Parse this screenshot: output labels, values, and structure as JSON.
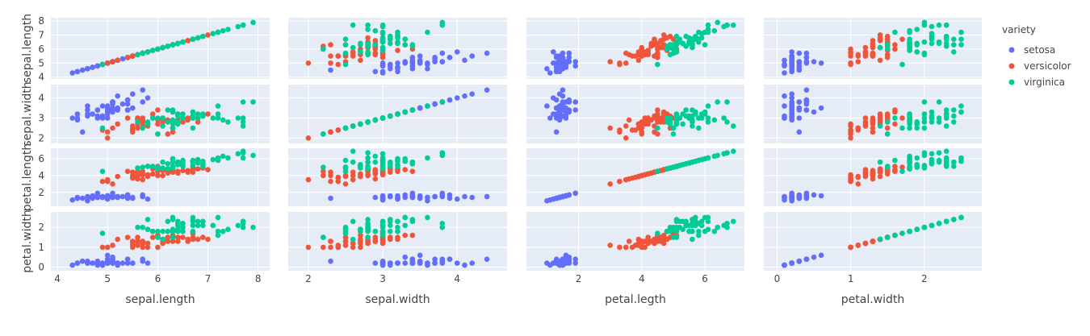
{
  "chart_data": {
    "type": "scatter",
    "subtype": "scatter-matrix",
    "dimensions": [
      "sepal.length",
      "sepal.width",
      "petal.legth",
      "petal.width"
    ],
    "y_dimension_labels": [
      "sepal.length",
      "sepal.width",
      "petal.length",
      "petal.width"
    ],
    "ranges": {
      "sepal.length": [
        3.87,
        8.23
      ],
      "sepal.width": [
        1.73,
        4.67
      ],
      "petal.legth": [
        0.35,
        7.25
      ],
      "petal.width": [
        -0.18,
        2.78
      ]
    },
    "ticks": {
      "sepal.length": [
        4,
        5,
        6,
        7,
        8
      ],
      "sepal.width": [
        2,
        3,
        4
      ],
      "petal.legth": [
        2,
        4,
        6
      ],
      "petal.width": [
        0,
        1,
        2
      ]
    },
    "legend": {
      "title": "variety",
      "position": "top-right",
      "entries": [
        {
          "name": "setosa",
          "color": "#636efa"
        },
        {
          "name": "versicolor",
          "color": "#EF553B"
        },
        {
          "name": "virginica",
          "color": "#00cc96"
        }
      ]
    },
    "grid": true,
    "series": [
      {
        "name": "setosa",
        "color": "#636efa",
        "points": [
          [
            5.1,
            3.5,
            1.4,
            0.2
          ],
          [
            4.9,
            3.0,
            1.4,
            0.2
          ],
          [
            4.7,
            3.2,
            1.3,
            0.2
          ],
          [
            4.6,
            3.1,
            1.5,
            0.2
          ],
          [
            5.0,
            3.6,
            1.4,
            0.2
          ],
          [
            5.4,
            3.9,
            1.7,
            0.4
          ],
          [
            4.6,
            3.4,
            1.4,
            0.3
          ],
          [
            5.0,
            3.4,
            1.5,
            0.2
          ],
          [
            4.4,
            2.9,
            1.4,
            0.2
          ],
          [
            4.9,
            3.1,
            1.5,
            0.1
          ],
          [
            5.4,
            3.7,
            1.5,
            0.2
          ],
          [
            4.8,
            3.4,
            1.6,
            0.2
          ],
          [
            4.8,
            3.0,
            1.4,
            0.1
          ],
          [
            4.3,
            3.0,
            1.1,
            0.1
          ],
          [
            5.8,
            4.0,
            1.2,
            0.2
          ],
          [
            5.7,
            4.4,
            1.5,
            0.4
          ],
          [
            5.4,
            3.9,
            1.3,
            0.4
          ],
          [
            5.1,
            3.5,
            1.4,
            0.3
          ],
          [
            5.7,
            3.8,
            1.7,
            0.3
          ],
          [
            5.1,
            3.8,
            1.5,
            0.3
          ],
          [
            5.4,
            3.4,
            1.7,
            0.2
          ],
          [
            5.1,
            3.7,
            1.5,
            0.4
          ],
          [
            4.6,
            3.6,
            1.0,
            0.2
          ],
          [
            5.1,
            3.3,
            1.7,
            0.5
          ],
          [
            4.8,
            3.4,
            1.9,
            0.2
          ],
          [
            5.0,
            3.0,
            1.6,
            0.2
          ],
          [
            5.0,
            3.4,
            1.6,
            0.4
          ],
          [
            5.2,
            3.5,
            1.5,
            0.2
          ],
          [
            5.2,
            3.4,
            1.4,
            0.2
          ],
          [
            4.7,
            3.2,
            1.6,
            0.2
          ],
          [
            4.8,
            3.1,
            1.6,
            0.2
          ],
          [
            5.4,
            3.4,
            1.5,
            0.4
          ],
          [
            5.2,
            4.1,
            1.5,
            0.1
          ],
          [
            5.5,
            4.2,
            1.4,
            0.2
          ],
          [
            4.9,
            3.1,
            1.5,
            0.2
          ],
          [
            5.0,
            3.2,
            1.2,
            0.2
          ],
          [
            5.5,
            3.5,
            1.3,
            0.2
          ],
          [
            4.9,
            3.6,
            1.4,
            0.1
          ],
          [
            4.4,
            3.0,
            1.3,
            0.2
          ],
          [
            5.1,
            3.4,
            1.5,
            0.2
          ],
          [
            5.0,
            3.5,
            1.3,
            0.3
          ],
          [
            4.5,
            2.3,
            1.3,
            0.3
          ],
          [
            4.4,
            3.2,
            1.3,
            0.2
          ],
          [
            5.0,
            3.5,
            1.6,
            0.6
          ],
          [
            5.1,
            3.8,
            1.9,
            0.4
          ],
          [
            4.8,
            3.0,
            1.4,
            0.3
          ],
          [
            5.1,
            3.8,
            1.6,
            0.2
          ],
          [
            4.6,
            3.2,
            1.4,
            0.2
          ],
          [
            5.3,
            3.7,
            1.5,
            0.2
          ],
          [
            5.0,
            3.3,
            1.4,
            0.2
          ]
        ]
      },
      {
        "name": "versicolor",
        "color": "#EF553B",
        "points": [
          [
            7.0,
            3.2,
            4.7,
            1.4
          ],
          [
            6.4,
            3.2,
            4.5,
            1.5
          ],
          [
            6.9,
            3.1,
            4.9,
            1.5
          ],
          [
            5.5,
            2.3,
            4.0,
            1.3
          ],
          [
            6.5,
            2.8,
            4.6,
            1.5
          ],
          [
            5.7,
            2.8,
            4.5,
            1.3
          ],
          [
            6.3,
            3.3,
            4.7,
            1.6
          ],
          [
            4.9,
            2.4,
            3.3,
            1.0
          ],
          [
            6.6,
            2.9,
            4.6,
            1.3
          ],
          [
            5.2,
            2.7,
            3.9,
            1.4
          ],
          [
            5.0,
            2.0,
            3.5,
            1.0
          ],
          [
            5.9,
            3.0,
            4.2,
            1.5
          ],
          [
            6.0,
            2.2,
            4.0,
            1.0
          ],
          [
            6.1,
            2.9,
            4.7,
            1.4
          ],
          [
            5.6,
            2.9,
            3.6,
            1.3
          ],
          [
            6.7,
            3.1,
            4.4,
            1.4
          ],
          [
            5.6,
            3.0,
            4.5,
            1.5
          ],
          [
            5.8,
            2.7,
            4.1,
            1.0
          ],
          [
            6.2,
            2.2,
            4.5,
            1.5
          ],
          [
            5.6,
            2.5,
            3.9,
            1.1
          ],
          [
            5.9,
            3.2,
            4.8,
            1.8
          ],
          [
            6.1,
            2.8,
            4.0,
            1.3
          ],
          [
            6.3,
            2.5,
            4.9,
            1.5
          ],
          [
            6.1,
            2.8,
            4.7,
            1.2
          ],
          [
            6.4,
            2.9,
            4.3,
            1.3
          ],
          [
            6.6,
            3.0,
            4.4,
            1.4
          ],
          [
            6.8,
            2.8,
            4.8,
            1.4
          ],
          [
            6.7,
            3.0,
            5.0,
            1.7
          ],
          [
            6.0,
            2.9,
            4.5,
            1.5
          ],
          [
            5.7,
            2.6,
            3.5,
            1.0
          ],
          [
            5.5,
            2.4,
            3.8,
            1.1
          ],
          [
            5.5,
            2.4,
            3.7,
            1.0
          ],
          [
            5.8,
            2.7,
            3.9,
            1.2
          ],
          [
            6.0,
            2.7,
            5.1,
            1.6
          ],
          [
            5.4,
            3.0,
            4.5,
            1.5
          ],
          [
            6.0,
            3.4,
            4.5,
            1.6
          ],
          [
            6.7,
            3.1,
            4.7,
            1.5
          ],
          [
            6.3,
            2.3,
            4.4,
            1.3
          ],
          [
            5.6,
            3.0,
            4.1,
            1.3
          ],
          [
            5.5,
            2.5,
            4.0,
            1.3
          ],
          [
            5.5,
            2.6,
            4.4,
            1.2
          ],
          [
            6.1,
            3.0,
            4.6,
            1.4
          ],
          [
            5.8,
            2.6,
            4.0,
            1.2
          ],
          [
            5.0,
            2.3,
            3.3,
            1.0
          ],
          [
            5.6,
            2.7,
            4.2,
            1.3
          ],
          [
            5.7,
            3.0,
            4.2,
            1.2
          ],
          [
            5.7,
            2.9,
            4.2,
            1.3
          ],
          [
            6.2,
            2.9,
            4.3,
            1.3
          ],
          [
            5.1,
            2.5,
            3.0,
            1.1
          ],
          [
            5.7,
            2.8,
            4.1,
            1.3
          ]
        ]
      },
      {
        "name": "virginica",
        "color": "#00cc96",
        "points": [
          [
            6.3,
            3.3,
            6.0,
            2.5
          ],
          [
            5.8,
            2.7,
            5.1,
            1.9
          ],
          [
            7.1,
            3.0,
            5.9,
            2.1
          ],
          [
            6.3,
            2.9,
            5.6,
            1.8
          ],
          [
            6.5,
            3.0,
            5.8,
            2.2
          ],
          [
            7.6,
            3.0,
            6.6,
            2.1
          ],
          [
            4.9,
            2.5,
            4.5,
            1.7
          ],
          [
            7.3,
            2.9,
            6.3,
            1.8
          ],
          [
            6.7,
            2.5,
            5.8,
            1.8
          ],
          [
            7.2,
            3.6,
            6.1,
            2.5
          ],
          [
            6.5,
            3.2,
            5.1,
            2.0
          ],
          [
            6.4,
            2.7,
            5.3,
            1.9
          ],
          [
            6.8,
            3.0,
            5.5,
            2.1
          ],
          [
            5.7,
            2.5,
            5.0,
            2.0
          ],
          [
            5.8,
            2.8,
            5.1,
            2.4
          ],
          [
            6.4,
            3.2,
            5.3,
            2.3
          ],
          [
            6.5,
            3.0,
            5.5,
            1.8
          ],
          [
            7.7,
            3.8,
            6.7,
            2.2
          ],
          [
            7.7,
            2.6,
            6.9,
            2.3
          ],
          [
            6.0,
            2.2,
            5.0,
            1.5
          ],
          [
            6.9,
            3.2,
            5.7,
            2.3
          ],
          [
            5.6,
            2.8,
            4.9,
            2.0
          ],
          [
            7.7,
            2.8,
            6.7,
            2.0
          ],
          [
            6.3,
            2.7,
            4.9,
            1.8
          ],
          [
            6.7,
            3.3,
            5.7,
            2.1
          ],
          [
            7.2,
            3.2,
            6.0,
            1.8
          ],
          [
            6.2,
            2.8,
            4.8,
            1.8
          ],
          [
            6.1,
            3.0,
            4.9,
            1.8
          ],
          [
            6.4,
            2.8,
            5.6,
            2.1
          ],
          [
            7.2,
            3.0,
            5.8,
            1.6
          ],
          [
            7.4,
            2.8,
            6.1,
            1.9
          ],
          [
            7.9,
            3.8,
            6.4,
            2.0
          ],
          [
            6.4,
            2.8,
            5.6,
            2.2
          ],
          [
            6.3,
            2.8,
            5.1,
            1.5
          ],
          [
            6.1,
            2.6,
            5.6,
            1.4
          ],
          [
            7.7,
            3.0,
            6.1,
            2.3
          ],
          [
            6.3,
            3.4,
            5.6,
            2.4
          ],
          [
            6.4,
            3.1,
            5.5,
            1.8
          ],
          [
            6.0,
            3.0,
            4.8,
            1.8
          ],
          [
            6.9,
            3.1,
            5.4,
            2.1
          ],
          [
            6.7,
            3.1,
            5.6,
            2.4
          ],
          [
            6.9,
            3.1,
            5.1,
            2.3
          ],
          [
            5.8,
            2.7,
            5.1,
            1.9
          ],
          [
            6.8,
            3.2,
            5.9,
            2.3
          ],
          [
            6.7,
            3.3,
            5.7,
            2.5
          ],
          [
            6.7,
            3.0,
            5.2,
            2.3
          ],
          [
            6.3,
            2.5,
            5.0,
            1.9
          ],
          [
            6.5,
            3.0,
            5.2,
            2.0
          ],
          [
            6.2,
            3.4,
            5.4,
            2.3
          ],
          [
            5.9,
            3.0,
            5.1,
            1.8
          ]
        ]
      }
    ]
  }
}
